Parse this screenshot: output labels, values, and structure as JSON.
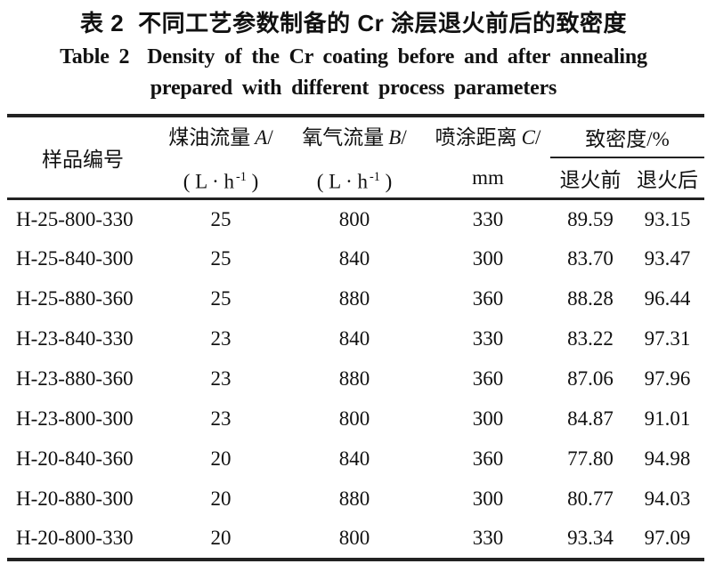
{
  "caption": {
    "zh_label": "表 2",
    "zh_title": "不同工艺参数制备的 Cr 涂层退火前后的致密度",
    "en_label": "Table 2",
    "en_title_line1": "Density of the Cr coating before and after annealing",
    "en_title_line2": "prepared with different process parameters"
  },
  "table": {
    "header": {
      "sample": "样品编号",
      "kerosene": {
        "label": "煤油流量",
        "symbol": "A",
        "slash": "/"
      },
      "oxygen": {
        "label": "氧气流量",
        "symbol": "B",
        "slash": "/"
      },
      "distance": {
        "label": "喷涂距离",
        "symbol": "C",
        "slash": "/",
        "unit": "mm"
      },
      "flow_unit": {
        "pre": "( L · h",
        "sup": "-1",
        "post": " )"
      },
      "density_group": "致密度/%",
      "before": "退火前",
      "after": "退火后"
    },
    "field_order": [
      "id",
      "kerosene",
      "oxygen",
      "distance",
      "before",
      "after"
    ],
    "rows": [
      {
        "id": "H-25-800-330",
        "kerosene": "25",
        "oxygen": "800",
        "distance": "330",
        "before": "89.59",
        "after": "93.15"
      },
      {
        "id": "H-25-840-300",
        "kerosene": "25",
        "oxygen": "840",
        "distance": "300",
        "before": "83.70",
        "after": "93.47"
      },
      {
        "id": "H-25-880-360",
        "kerosene": "25",
        "oxygen": "880",
        "distance": "360",
        "before": "88.28",
        "after": "96.44"
      },
      {
        "id": "H-23-840-330",
        "kerosene": "23",
        "oxygen": "840",
        "distance": "330",
        "before": "83.22",
        "after": "97.31"
      },
      {
        "id": "H-23-880-360",
        "kerosene": "23",
        "oxygen": "880",
        "distance": "360",
        "before": "87.06",
        "after": "97.96"
      },
      {
        "id": "H-23-800-300",
        "kerosene": "23",
        "oxygen": "800",
        "distance": "300",
        "before": "84.87",
        "after": "91.01"
      },
      {
        "id": "H-20-840-360",
        "kerosene": "20",
        "oxygen": "840",
        "distance": "360",
        "before": "77.80",
        "after": "94.98"
      },
      {
        "id": "H-20-880-300",
        "kerosene": "20",
        "oxygen": "880",
        "distance": "300",
        "before": "80.77",
        "after": "94.03"
      },
      {
        "id": "H-20-800-330",
        "kerosene": "20",
        "oxygen": "800",
        "distance": "330",
        "before": "93.34",
        "after": "97.09"
      }
    ]
  },
  "colors": {
    "text": "#111111",
    "rule": "#222222",
    "background": "#ffffff"
  }
}
